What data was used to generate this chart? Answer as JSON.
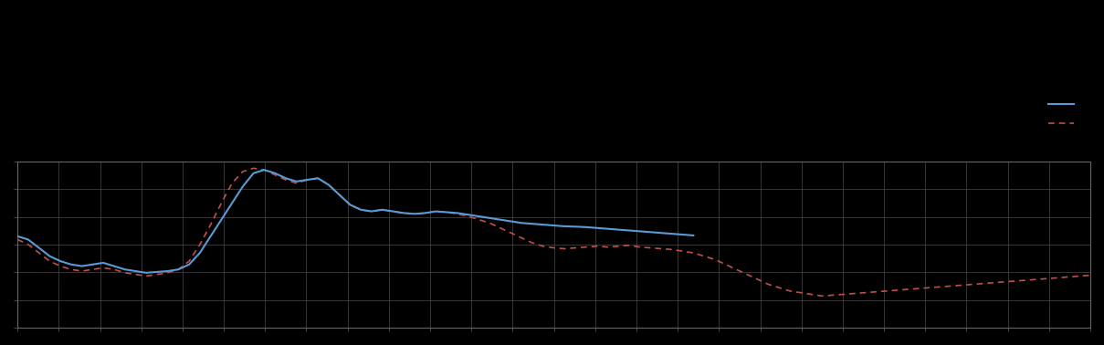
{
  "background_color": "#000000",
  "plot_bg_color": "#000000",
  "grid_color": "#4a4a4a",
  "blue_line_color": "#5b9bd5",
  "red_line_color": "#c0504d",
  "figsize": [
    12.09,
    3.78
  ],
  "dpi": 100,
  "xlim": [
    0,
    100
  ],
  "ylim": [
    0,
    10
  ],
  "xtick_count": 26,
  "ytick_count": 6,
  "blue_x": [
    0,
    1,
    2,
    3,
    4,
    5,
    6,
    7,
    8,
    9,
    10,
    11,
    12,
    13,
    14,
    15,
    16,
    17,
    18,
    19,
    20,
    21,
    22,
    23,
    24,
    25,
    26,
    27,
    28,
    29,
    30,
    31,
    32,
    33,
    34,
    35,
    36,
    37,
    38,
    39,
    40,
    41,
    42,
    43,
    44,
    45,
    46,
    47,
    48,
    49,
    50,
    51,
    52,
    53,
    54,
    55,
    56,
    57,
    58,
    59,
    60,
    61,
    62,
    63
  ],
  "blue_y": [
    5.5,
    5.3,
    4.8,
    4.3,
    4.0,
    3.8,
    3.7,
    3.8,
    3.9,
    3.7,
    3.5,
    3.4,
    3.3,
    3.35,
    3.4,
    3.5,
    3.8,
    4.5,
    5.5,
    6.5,
    7.5,
    8.5,
    9.3,
    9.5,
    9.3,
    9.0,
    8.8,
    8.9,
    9.0,
    8.6,
    8.0,
    7.4,
    7.1,
    7.0,
    7.1,
    7.0,
    6.9,
    6.85,
    6.9,
    7.0,
    6.95,
    6.9,
    6.8,
    6.7,
    6.6,
    6.5,
    6.4,
    6.3,
    6.25,
    6.2,
    6.15,
    6.1,
    6.08,
    6.05,
    6.0,
    5.95,
    5.9,
    5.85,
    5.8,
    5.75,
    5.7,
    5.65,
    5.6,
    5.55
  ],
  "red_x": [
    0,
    1,
    2,
    3,
    4,
    5,
    6,
    7,
    8,
    9,
    10,
    11,
    12,
    13,
    14,
    15,
    16,
    17,
    18,
    19,
    20,
    21,
    22,
    23,
    24,
    25,
    26,
    27,
    28,
    29,
    30,
    31,
    32,
    33,
    34,
    35,
    36,
    37,
    38,
    39,
    40,
    41,
    42,
    43,
    44,
    45,
    46,
    47,
    48,
    49,
    50,
    51,
    52,
    53,
    54,
    55,
    56,
    57,
    58,
    59,
    60,
    61,
    62,
    63,
    64,
    65,
    66,
    67,
    68,
    69,
    70,
    71,
    72,
    73,
    74,
    75,
    76,
    77,
    78,
    79,
    80,
    81,
    82,
    83,
    84,
    85,
    86,
    87,
    88,
    89,
    90,
    91,
    92,
    93,
    94,
    95,
    96,
    97,
    98,
    99,
    100
  ],
  "red_y": [
    5.3,
    5.0,
    4.5,
    4.0,
    3.7,
    3.5,
    3.4,
    3.5,
    3.6,
    3.5,
    3.3,
    3.2,
    3.1,
    3.2,
    3.3,
    3.5,
    4.0,
    5.0,
    6.2,
    7.5,
    8.7,
    9.4,
    9.6,
    9.5,
    9.2,
    8.9,
    8.7,
    8.9,
    9.0,
    8.6,
    8.0,
    7.4,
    7.1,
    7.0,
    7.1,
    7.0,
    6.9,
    6.85,
    6.9,
    7.0,
    6.95,
    6.85,
    6.7,
    6.5,
    6.3,
    6.0,
    5.7,
    5.4,
    5.1,
    4.9,
    4.8,
    4.75,
    4.8,
    4.85,
    4.9,
    4.85,
    4.9,
    4.95,
    4.85,
    4.8,
    4.75,
    4.7,
    4.6,
    4.5,
    4.3,
    4.1,
    3.8,
    3.5,
    3.2,
    2.9,
    2.6,
    2.4,
    2.2,
    2.1,
    2.0,
    1.9,
    1.95,
    2.0,
    2.05,
    2.1,
    2.15,
    2.2,
    2.25,
    2.3,
    2.35,
    2.4,
    2.45,
    2.5,
    2.55,
    2.6,
    2.65,
    2.7,
    2.75,
    2.8,
    2.85,
    2.9,
    2.95,
    3.0,
    3.05,
    3.1,
    3.15
  ]
}
